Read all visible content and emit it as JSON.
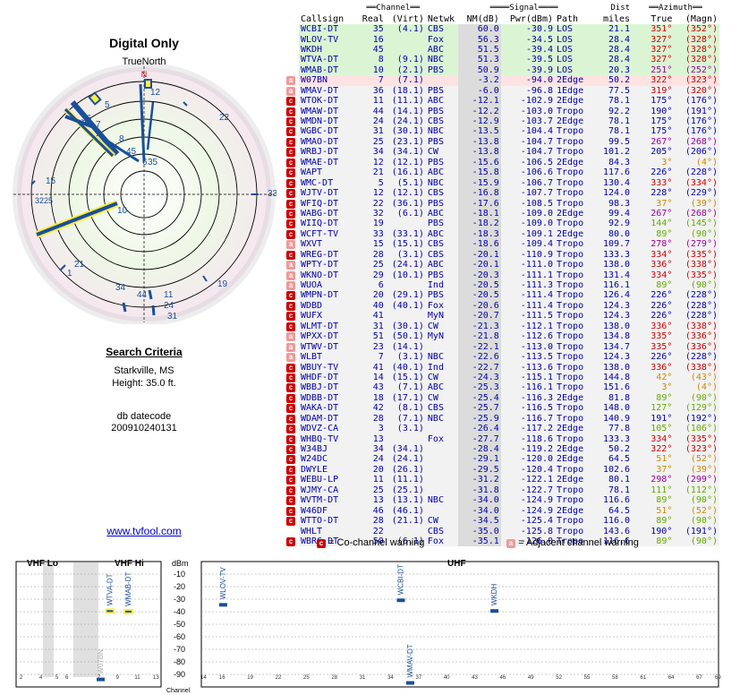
{
  "left_panel": {
    "title": "Digital Only",
    "north_label": "TrueNorth",
    "north_letter": "N",
    "search_heading": "Search Criteria",
    "location": "Starkville, MS",
    "height": "Height: 35.0 ft.",
    "db_label": "db datecode",
    "db_value": "200910240131",
    "url": "www.tvfool.com"
  },
  "radar_labels": [
    {
      "text": "12",
      "az": 3
    },
    {
      "text": "5",
      "az": 330
    },
    {
      "text": "7",
      "az": 326
    },
    {
      "text": "36",
      "az": 320
    },
    {
      "text": "8",
      "az": 334
    },
    {
      "text": "45",
      "az": 336
    },
    {
      "text": "6",
      "az": 352
    },
    {
      "text": "35",
      "az": 358
    },
    {
      "text": "22",
      "az": 40
    },
    {
      "text": "15",
      "az": 290
    },
    {
      "text": "3225",
      "az": 272
    },
    {
      "text": "10",
      "az": 100
    },
    {
      "text": "33",
      "az": 90
    },
    {
      "text": "21",
      "az": 225
    },
    {
      "text": "1",
      "az": 228
    },
    {
      "text": "34",
      "az": 203
    },
    {
      "text": "44",
      "az": 190
    },
    {
      "text": "11",
      "az": 177
    },
    {
      "text": "24",
      "az": 176
    },
    {
      "text": "31",
      "az": 178
    },
    {
      "text": "19",
      "az": 146
    }
  ],
  "table": {
    "group_headers": {
      "channel": "Channel",
      "signal": "Signal",
      "azimuth": "Azimuth"
    },
    "columns": [
      "Callsign",
      "Real",
      "(Virt)",
      "Netwk",
      "NM(dB)",
      "Pwr(dBm)",
      "Path",
      "Dist miles",
      "True",
      "(Magn)"
    ],
    "dist_label": "Dist",
    "miles_label": "miles",
    "rows": [
      {
        "w": "",
        "c": "g",
        "cs": "WCBI-DT",
        "r": "35",
        "v": "(4.1)",
        "n": "CBS",
        "nm": "60.0",
        "p": "-30.9",
        "path": "LOS",
        "d": "21.1",
        "t": "351°",
        "m": "(352°)"
      },
      {
        "w": "",
        "c": "g",
        "cs": "WLOV-TV",
        "r": "16",
        "v": "",
        "n": "Fox",
        "nm": "56.3",
        "p": "-34.5",
        "path": "LOS",
        "d": "28.4",
        "t": "327°",
        "m": "(328°)"
      },
      {
        "w": "",
        "c": "g",
        "cs": "WKDH",
        "r": "45",
        "v": "",
        "n": "ABC",
        "nm": "51.5",
        "p": "-39.4",
        "path": "LOS",
        "d": "28.4",
        "t": "327°",
        "m": "(328°)"
      },
      {
        "w": "",
        "c": "g",
        "cs": "WTVA-DT",
        "r": "8",
        "v": "(9.1)",
        "n": "NBC",
        "nm": "51.3",
        "p": "-39.5",
        "path": "LOS",
        "d": "28.4",
        "t": "327°",
        "m": "(328°)"
      },
      {
        "w": "",
        "c": "g",
        "cs": "WMAB-DT",
        "r": "10",
        "v": "(2.1)",
        "n": "PBS",
        "nm": "50.9",
        "p": "-39.9",
        "path": "LOS",
        "d": "20.3",
        "t": "251°",
        "m": "(252°)"
      },
      {
        "w": "a",
        "c": "r",
        "cs": "W07BN",
        "r": "7",
        "v": "(7.1)",
        "n": "",
        "nm": "-3.2",
        "p": "-94.0",
        "path": "2Edge",
        "d": "50.2",
        "t": "322°",
        "m": "(323°)"
      },
      {
        "w": "a",
        "c": "w",
        "cs": "WMAV-DT",
        "r": "36",
        "v": "(18.1)",
        "n": "PBS",
        "nm": "-6.0",
        "p": "-96.8",
        "path": "1Edge",
        "d": "77.5",
        "t": "319°",
        "m": "(320°)"
      },
      {
        "w": "c",
        "c": "w",
        "cs": "WTOK-DT",
        "r": "11",
        "v": "(11.1)",
        "n": "ABC",
        "nm": "-12.1",
        "p": "-102.9",
        "path": "2Edge",
        "d": "78.1",
        "t": "175°",
        "m": "(176°)"
      },
      {
        "w": "c",
        "c": "w",
        "cs": "WMAW-DT",
        "r": "44",
        "v": "(14.1)",
        "n": "PBS",
        "nm": "-12.2",
        "p": "-103.0",
        "path": "Tropo",
        "d": "92.2",
        "t": "190°",
        "m": "(191°)"
      },
      {
        "w": "c",
        "c": "w",
        "cs": "WMDN-DT",
        "r": "24",
        "v": "(24.1)",
        "n": "CBS",
        "nm": "-12.9",
        "p": "-103.7",
        "path": "2Edge",
        "d": "78.1",
        "t": "175°",
        "m": "(176°)"
      },
      {
        "w": "c",
        "c": "w",
        "cs": "WGBC-DT",
        "r": "31",
        "v": "(30.1)",
        "n": "NBC",
        "nm": "-13.5",
        "p": "-104.4",
        "path": "Tropo",
        "d": "78.1",
        "t": "175°",
        "m": "(176°)"
      },
      {
        "w": "c",
        "c": "w",
        "cs": "WMAO-DT",
        "r": "25",
        "v": "(23.1)",
        "n": "PBS",
        "nm": "-13.8",
        "p": "-104.7",
        "path": "Tropo",
        "d": "99.5",
        "t": "267°",
        "m": "(268°)"
      },
      {
        "w": "c",
        "c": "w",
        "cs": "WRBJ-DT",
        "r": "34",
        "v": "(34.1)",
        "n": "CW",
        "nm": "-13.8",
        "p": "-104.7",
        "path": "Tropo",
        "d": "101.2",
        "t": "205°",
        "m": "(206°)"
      },
      {
        "w": "c",
        "c": "w",
        "cs": "WMAE-DT",
        "r": "12",
        "v": "(12.1)",
        "n": "PBS",
        "nm": "-15.6",
        "p": "-106.5",
        "path": "2Edge",
        "d": "84.3",
        "t": "3°",
        "m": "(4°)"
      },
      {
        "w": "c",
        "c": "w",
        "cs": "WAPT",
        "r": "21",
        "v": "(16.1)",
        "n": "ABC",
        "nm": "-15.8",
        "p": "-106.6",
        "path": "Tropo",
        "d": "117.6",
        "t": "226°",
        "m": "(228°)"
      },
      {
        "w": "c",
        "c": "w",
        "cs": "WMC-DT",
        "r": "5",
        "v": "(5.1)",
        "n": "NBC",
        "nm": "-15.9",
        "p": "-106.7",
        "path": "Tropo",
        "d": "130.4",
        "t": "333°",
        "m": "(334°)"
      },
      {
        "w": "c",
        "c": "w",
        "cs": "WJTV-DT",
        "r": "12",
        "v": "(12.1)",
        "n": "CBS",
        "nm": "-16.8",
        "p": "-107.7",
        "path": "Tropo",
        "d": "124.0",
        "t": "228°",
        "m": "(229°)"
      },
      {
        "w": "c",
        "c": "w",
        "cs": "WFIQ-DT",
        "r": "22",
        "v": "(36.1)",
        "n": "PBS",
        "nm": "-17.6",
        "p": "-108.5",
        "path": "Tropo",
        "d": "98.3",
        "t": "37°",
        "m": "(39°)"
      },
      {
        "w": "c",
        "c": "w",
        "cs": "WABG-DT",
        "r": "32",
        "v": "(6.1)",
        "n": "ABC",
        "nm": "-18.1",
        "p": "-109.0",
        "path": "2Edge",
        "d": "99.4",
        "t": "267°",
        "m": "(268°)"
      },
      {
        "w": "c",
        "c": "w",
        "cs": "WIIQ-DT",
        "r": "19",
        "v": "",
        "n": "PBS",
        "nm": "-18.2",
        "p": "-109.0",
        "path": "Tropo",
        "d": "92.9",
        "t": "144°",
        "m": "(145°)"
      },
      {
        "w": "c",
        "c": "w",
        "cs": "WCFT-TV",
        "r": "33",
        "v": "(33.1)",
        "n": "ABC",
        "nm": "-18.3",
        "p": "-109.1",
        "path": "2Edge",
        "d": "80.0",
        "t": "89°",
        "m": "(90°)"
      },
      {
        "w": "a",
        "c": "w",
        "cs": "WXVT",
        "r": "15",
        "v": "(15.1)",
        "n": "CBS",
        "nm": "-18.6",
        "p": "-109.4",
        "path": "Tropo",
        "d": "109.7",
        "t": "278°",
        "m": "(279°)"
      },
      {
        "w": "c",
        "c": "w",
        "cs": "WREG-DT",
        "r": "28",
        "v": "(3.1)",
        "n": "CBS",
        "nm": "-20.1",
        "p": "-110.9",
        "path": "Tropo",
        "d": "133.3",
        "t": "334°",
        "m": "(335°)"
      },
      {
        "w": "a",
        "c": "w",
        "cs": "WPTY-DT",
        "r": "25",
        "v": "(24.1)",
        "n": "ABC",
        "nm": "-20.1",
        "p": "-111.0",
        "path": "Tropo",
        "d": "138.0",
        "t": "336°",
        "m": "(338°)"
      },
      {
        "w": "a",
        "c": "w",
        "cs": "WKNO-DT",
        "r": "29",
        "v": "(10.1)",
        "n": "PBS",
        "nm": "-20.3",
        "p": "-111.1",
        "path": "Tropo",
        "d": "131.4",
        "t": "334°",
        "m": "(335°)"
      },
      {
        "w": "a",
        "c": "w",
        "cs": "WUOA",
        "r": "6",
        "v": "",
        "n": "Ind",
        "nm": "-20.5",
        "p": "-111.3",
        "path": "Tropo",
        "d": "116.1",
        "t": "89°",
        "m": "(90°)"
      },
      {
        "w": "c",
        "c": "w",
        "cs": "WMPN-DT",
        "r": "20",
        "v": "(29.1)",
        "n": "PBS",
        "nm": "-20.5",
        "p": "-111.4",
        "path": "Tropo",
        "d": "126.4",
        "t": "226°",
        "m": "(228°)"
      },
      {
        "w": "c",
        "c": "w",
        "cs": "WDBD",
        "r": "40",
        "v": "(40.1)",
        "n": "Fox",
        "nm": "-20.6",
        "p": "-111.4",
        "path": "Tropo",
        "d": "124.3",
        "t": "226°",
        "m": "(228°)"
      },
      {
        "w": "c",
        "c": "w",
        "cs": "WUFX",
        "r": "41",
        "v": "",
        "n": "MyN",
        "nm": "-20.7",
        "p": "-111.5",
        "path": "Tropo",
        "d": "124.3",
        "t": "226°",
        "m": "(228°)"
      },
      {
        "w": "c",
        "c": "w",
        "cs": "WLMT-DT",
        "r": "31",
        "v": "(30.1)",
        "n": "CW",
        "nm": "-21.3",
        "p": "-112.1",
        "path": "Tropo",
        "d": "138.0",
        "t": "336°",
        "m": "(338°)"
      },
      {
        "w": "a",
        "c": "w",
        "cs": "WPXX-DT",
        "r": "51",
        "v": "(50.1)",
        "n": "MyN",
        "nm": "-21.8",
        "p": "-112.6",
        "path": "Tropo",
        "d": "134.8",
        "t": "335°",
        "m": "(336°)"
      },
      {
        "w": "a",
        "c": "w",
        "cs": "WTWV-DT",
        "r": "23",
        "v": "(14.1)",
        "n": "",
        "nm": "-22.1",
        "p": "-113.0",
        "path": "Tropo",
        "d": "134.7",
        "t": "335°",
        "m": "(336°)"
      },
      {
        "w": "a",
        "c": "w",
        "cs": "WLBT",
        "r": "7",
        "v": "(3.1)",
        "n": "NBC",
        "nm": "-22.6",
        "p": "-113.5",
        "path": "Tropo",
        "d": "124.3",
        "t": "226°",
        "m": "(228°)"
      },
      {
        "w": "c",
        "c": "w",
        "cs": "WBUY-TV",
        "r": "41",
        "v": "(40.1)",
        "n": "Ind",
        "nm": "-22.7",
        "p": "-113.6",
        "path": "Tropo",
        "d": "138.0",
        "t": "336°",
        "m": "(338°)"
      },
      {
        "w": "c",
        "c": "w",
        "cs": "WHDF-DT",
        "r": "14",
        "v": "(15.1)",
        "n": "CW",
        "nm": "-24.3",
        "p": "-115.1",
        "path": "Tropo",
        "d": "144.8",
        "t": "42°",
        "m": "(43°)"
      },
      {
        "w": "c",
        "c": "w",
        "cs": "WBBJ-DT",
        "r": "43",
        "v": "(7.1)",
        "n": "ABC",
        "nm": "-25.3",
        "p": "-116.1",
        "path": "Tropo",
        "d": "151.6",
        "t": "3°",
        "m": "(4°)"
      },
      {
        "w": "c",
        "c": "w",
        "cs": "WDBB-DT",
        "r": "18",
        "v": "(17.1)",
        "n": "CW",
        "nm": "-25.4",
        "p": "-116.3",
        "path": "2Edge",
        "d": "81.8",
        "t": "89°",
        "m": "(90°)"
      },
      {
        "w": "c",
        "c": "w",
        "cs": "WAKA-DT",
        "r": "42",
        "v": "(8.1)",
        "n": "CBS",
        "nm": "-25.7",
        "p": "-116.5",
        "path": "Tropo",
        "d": "148.0",
        "t": "127°",
        "m": "(129°)"
      },
      {
        "w": "c",
        "c": "w",
        "cs": "WDAM-DT",
        "r": "28",
        "v": "(7.1)",
        "n": "NBC",
        "nm": "-25.9",
        "p": "-116.7",
        "path": "Tropo",
        "d": "140.9",
        "t": "191°",
        "m": "(192°)"
      },
      {
        "w": "c",
        "c": "w",
        "cs": "WDVZ-CA",
        "r": "3",
        "v": "(3.1)",
        "n": "",
        "nm": "-26.4",
        "p": "-117.2",
        "path": "2Edge",
        "d": "77.8",
        "t": "105°",
        "m": "(106°)"
      },
      {
        "w": "c",
        "c": "w",
        "cs": "WHBQ-TV",
        "r": "13",
        "v": "",
        "n": "Fox",
        "nm": "-27.7",
        "p": "-118.6",
        "path": "Tropo",
        "d": "133.3",
        "t": "334°",
        "m": "(335°)"
      },
      {
        "w": "c",
        "c": "w",
        "cs": "W34BJ",
        "r": "34",
        "v": "(34.1)",
        "n": "",
        "nm": "-28.4",
        "p": "-119.2",
        "path": "2Edge",
        "d": "50.2",
        "t": "322°",
        "m": "(323°)"
      },
      {
        "w": "c",
        "c": "w",
        "cs": "W24DC",
        "r": "24",
        "v": "(24.1)",
        "n": "",
        "nm": "-29.1",
        "p": "-120.0",
        "path": "2Edge",
        "d": "64.5",
        "t": "51°",
        "m": "(52°)"
      },
      {
        "w": "c",
        "c": "w",
        "cs": "DWYLE",
        "r": "20",
        "v": "(26.1)",
        "n": "",
        "nm": "-29.5",
        "p": "-120.4",
        "path": "Tropo",
        "d": "102.6",
        "t": "37°",
        "m": "(39°)"
      },
      {
        "w": "c",
        "c": "w",
        "cs": "WEBU-LP",
        "r": "11",
        "v": "(11.1)",
        "n": "",
        "nm": "-31.2",
        "p": "-122.1",
        "path": "2Edge",
        "d": "80.1",
        "t": "298°",
        "m": "(299°)"
      },
      {
        "w": "c",
        "c": "w",
        "cs": "WJMY-CA",
        "r": "25",
        "v": "(25.1)",
        "n": "",
        "nm": "-31.8",
        "p": "-122.7",
        "path": "Tropo",
        "d": "78.1",
        "t": "111°",
        "m": "(112°)"
      },
      {
        "w": "c",
        "c": "w",
        "cs": "WVTM-DT",
        "r": "13",
        "v": "(13.1)",
        "n": "NBC",
        "nm": "-34.0",
        "p": "-124.9",
        "path": "Tropo",
        "d": "116.6",
        "t": "89°",
        "m": "(90°)"
      },
      {
        "w": "c",
        "c": "w",
        "cs": "W46DF",
        "r": "46",
        "v": "(46.1)",
        "n": "",
        "nm": "-34.0",
        "p": "-124.9",
        "path": "2Edge",
        "d": "64.5",
        "t": "51°",
        "m": "(52°)"
      },
      {
        "w": "c",
        "c": "w",
        "cs": "WTTO-DT",
        "r": "28",
        "v": "(21.1)",
        "n": "CW",
        "nm": "-34.5",
        "p": "-125.4",
        "path": "Tropo",
        "d": "116.0",
        "t": "89°",
        "m": "(90°)"
      },
      {
        "w": "",
        "c": "w",
        "cs": "WHLT",
        "r": "22",
        "v": "",
        "n": "CBS",
        "nm": "-35.0",
        "p": "-125.8",
        "path": "Tropo",
        "d": "143.6",
        "t": "190°",
        "m": "(191°)"
      },
      {
        "w": "c",
        "c": "w",
        "cs": "WBRC-DT",
        "r": "50",
        "v": "(6.1)",
        "n": "Fox",
        "nm": "-35.1",
        "p": "-126.0",
        "path": "Tropo",
        "d": "116.6",
        "t": "89°",
        "m": "(90°)"
      }
    ]
  },
  "legend": {
    "co_text": "= Co-channel warning",
    "adj_text": "= Adjacent channel warning",
    "co_glyph": "c",
    "adj_glyph": "a"
  },
  "spectrum": {
    "labels": {
      "vhf_lo": "VHF Lo",
      "vhf_hi": "VHF Hi",
      "uhf": "UHF",
      "dbm": "dBm",
      "channel": "Channel"
    },
    "dbm_ticks": [
      "-10",
      "-20",
      "-30",
      "-40",
      "-50",
      "-60",
      "-70",
      "-80",
      "-90"
    ],
    "vhf_lo_ticks": [
      "2",
      "4",
      "5",
      "6"
    ],
    "vhf_hi_ticks": [
      "7",
      "9",
      "11",
      "13"
    ],
    "uhf_ticks": [
      "14",
      "16",
      "19",
      "22",
      "25",
      "28",
      "31",
      "34",
      "37",
      "40",
      "43",
      "46",
      "49",
      "52",
      "55",
      "58",
      "61",
      "64",
      "67",
      "69"
    ],
    "stations": [
      {
        "name": "WTVA-DT",
        "ch": 8,
        "dbm": -39.5
      },
      {
        "name": "WMAB-DT",
        "ch": 10,
        "dbm": -39.9
      },
      {
        "name": "W07BN",
        "ch": 7,
        "dbm": -94.0
      },
      {
        "name": "WLOV-TV",
        "ch": 16,
        "dbm": -34.5
      },
      {
        "name": "WCBI-DT",
        "ch": 35,
        "dbm": -30.9
      },
      {
        "name": "WKDH",
        "ch": 45,
        "dbm": -39.4
      },
      {
        "name": "WMAV-DT",
        "ch": 36,
        "dbm": -96.8
      }
    ]
  }
}
